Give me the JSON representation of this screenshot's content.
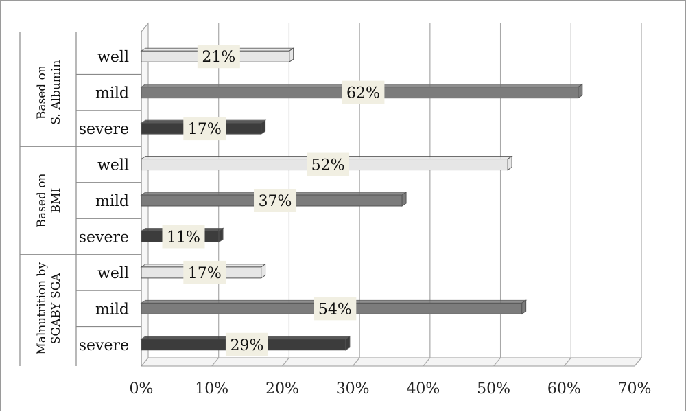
{
  "chart_data": {
    "type": "bar",
    "orientation": "horizontal",
    "xlim": [
      0,
      70
    ],
    "x_ticks": [
      "0%",
      "10%",
      "20%",
      "30%",
      "40%",
      "50%",
      "60%",
      "70%"
    ],
    "grid": true,
    "groups": [
      {
        "label": "Based on S. Albumin",
        "bars": [
          {
            "category": "well",
            "value": 21,
            "label": "21%"
          },
          {
            "category": "mild",
            "value": 62,
            "label": "62%"
          },
          {
            "category": "severe",
            "value": 17,
            "label": "17%"
          }
        ]
      },
      {
        "label": "Based on BMI",
        "bars": [
          {
            "category": "well",
            "value": 52,
            "label": "52%"
          },
          {
            "category": "mild",
            "value": 37,
            "label": "37%"
          },
          {
            "category": "severe",
            "value": 11,
            "label": "11%"
          }
        ]
      },
      {
        "label": "Malnutrition by SGABY SGA",
        "bars": [
          {
            "category": "well",
            "value": 17,
            "label": "17%"
          },
          {
            "category": "mild",
            "value": 54,
            "label": "54%"
          },
          {
            "category": "severe",
            "value": 29,
            "label": "29%"
          }
        ]
      }
    ],
    "colors": {
      "well": "#e6e6e6",
      "mild": "#7c7c7c",
      "severe": "#3c3c3c",
      "label_box": "#f1efe2"
    }
  }
}
